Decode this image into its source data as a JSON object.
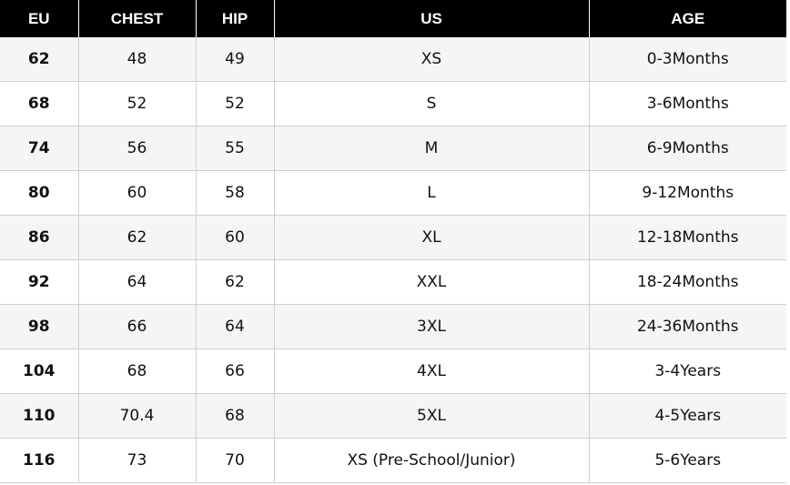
{
  "headers": [
    "EU",
    "CHEST",
    "HIP",
    "US",
    "AGE"
  ],
  "rows": [
    {
      "eu": "62",
      "chest": "48",
      "hip": "49",
      "us": "XS",
      "age": "0-3Months"
    },
    {
      "eu": "68",
      "chest": "52",
      "hip": "52",
      "us": "S",
      "age": "3-6Months"
    },
    {
      "eu": "74",
      "chest": "56",
      "hip": "55",
      "us": "M",
      "age": "6-9Months"
    },
    {
      "eu": "80",
      "chest": "60",
      "hip": "58",
      "us": "L",
      "age": "9-12Months"
    },
    {
      "eu": "86",
      "chest": "62",
      "hip": "60",
      "us": "XL",
      "age": "12-18Months"
    },
    {
      "eu": "92",
      "chest": "64",
      "hip": "62",
      "us": "XXL",
      "age": "18-24Months"
    },
    {
      "eu": "98",
      "chest": "66",
      "hip": "64",
      "us": "3XL",
      "age": "24-36Months"
    },
    {
      "eu": "104",
      "chest": "68",
      "hip": "66",
      "us": "4XL",
      "age": "3-4Years"
    },
    {
      "eu": "110",
      "chest": "70.4",
      "hip": "68",
      "us": "5XL",
      "age": "4-5Years"
    },
    {
      "eu": "116",
      "chest": "73",
      "hip": "70",
      "us": "XS (Pre-School/Junior)",
      "age": "5-6Years"
    }
  ],
  "colors": {
    "header_bg": "#000000",
    "header_text": "#ffffff",
    "row_alt_bg": "#f5f5f5",
    "border": "#cfcfcf"
  }
}
